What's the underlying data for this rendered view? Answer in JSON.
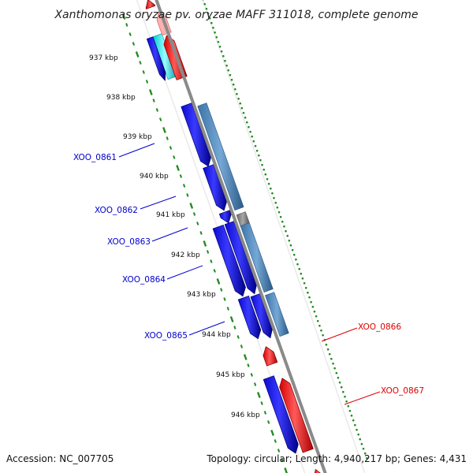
{
  "title": "Xanthomonas oryzae pv. oryzae MAFF 311018, complete genome",
  "footer": {
    "accession": "Accession: NC_007705",
    "topology": "Topology: circular; Length: 4,940,217 bp; Genes: 4,431"
  },
  "colors": {
    "forward_cds": "#0000ff",
    "reverse_cds": "#ff0000",
    "steel_blue_region": "#4682b4",
    "cyan_region": "#00ffff",
    "gray_region": "#808080",
    "orange_region": "#ff8c00",
    "tick_green": "#228b22",
    "label_blue": "#0000cc",
    "label_red": "#dd0000",
    "backbone": "#888888"
  },
  "scale_labels": [
    "937 kbp",
    "938 kbp",
    "939 kbp",
    "940 kbp",
    "941 kbp",
    "942 kbp",
    "943 kbp",
    "944 kbp",
    "945 kbp",
    "946 kbp"
  ],
  "gene_labels": [
    {
      "name": "XOO_0861",
      "strand": "forward"
    },
    {
      "name": "XOO_0862",
      "strand": "forward"
    },
    {
      "name": "XOO_0863",
      "strand": "forward"
    },
    {
      "name": "XOO_0864",
      "strand": "forward"
    },
    {
      "name": "XOO_0865",
      "strand": "forward"
    },
    {
      "name": "XOO_0866",
      "strand": "reverse"
    },
    {
      "name": "XOO_0867",
      "strand": "reverse"
    }
  ]
}
